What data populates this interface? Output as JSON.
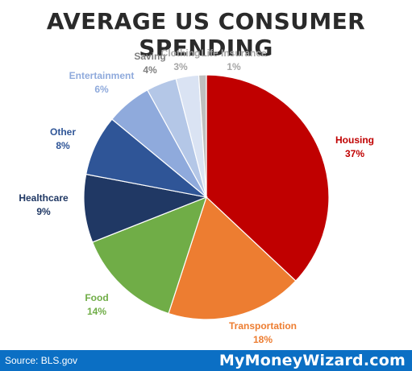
{
  "chart_data": {
    "type": "pie",
    "title": "AVERAGE US CONSUMER SPENDING",
    "slices": [
      {
        "label": "Housing",
        "value": 37,
        "value_label": "37%",
        "color": "#c00000",
        "label_color": "#c00000"
      },
      {
        "label": "Transportation",
        "value": 18,
        "value_label": "18%",
        "color": "#ed7d31",
        "label_color": "#ed7d31"
      },
      {
        "label": "Food",
        "value": 14,
        "value_label": "14%",
        "color": "#70ad47",
        "label_color": "#70ad47"
      },
      {
        "label": "Healthcare",
        "value": 9,
        "value_label": "9%",
        "color": "#203864",
        "label_color": "#203864"
      },
      {
        "label": "Other",
        "value": 8,
        "value_label": "8%",
        "color": "#2f5597",
        "label_color": "#2f5597"
      },
      {
        "label": "Entertainment",
        "value": 6,
        "value_label": "6%",
        "color": "#8faadc",
        "label_color": "#8faadc"
      },
      {
        "label": "Saving",
        "value": 4,
        "value_label": "4%",
        "color": "#b4c7e7",
        "label_color": "#7f7f7f"
      },
      {
        "label": "Clothing",
        "value": 3,
        "value_label": "3%",
        "color": "#dae3f3",
        "label_color": "#a6a6a6"
      },
      {
        "label": "Life Insurance",
        "value": 1,
        "value_label": "1%",
        "color": "#bfbfbf",
        "label_color": "#a6a6a6"
      }
    ],
    "start_angle": "12 o'clock",
    "direction": "clockwise",
    "legend": "none"
  },
  "footer": {
    "source": "Source: BLS.gov",
    "brand": "MyMoneyWizard.com",
    "background": "#0b6fc4"
  }
}
